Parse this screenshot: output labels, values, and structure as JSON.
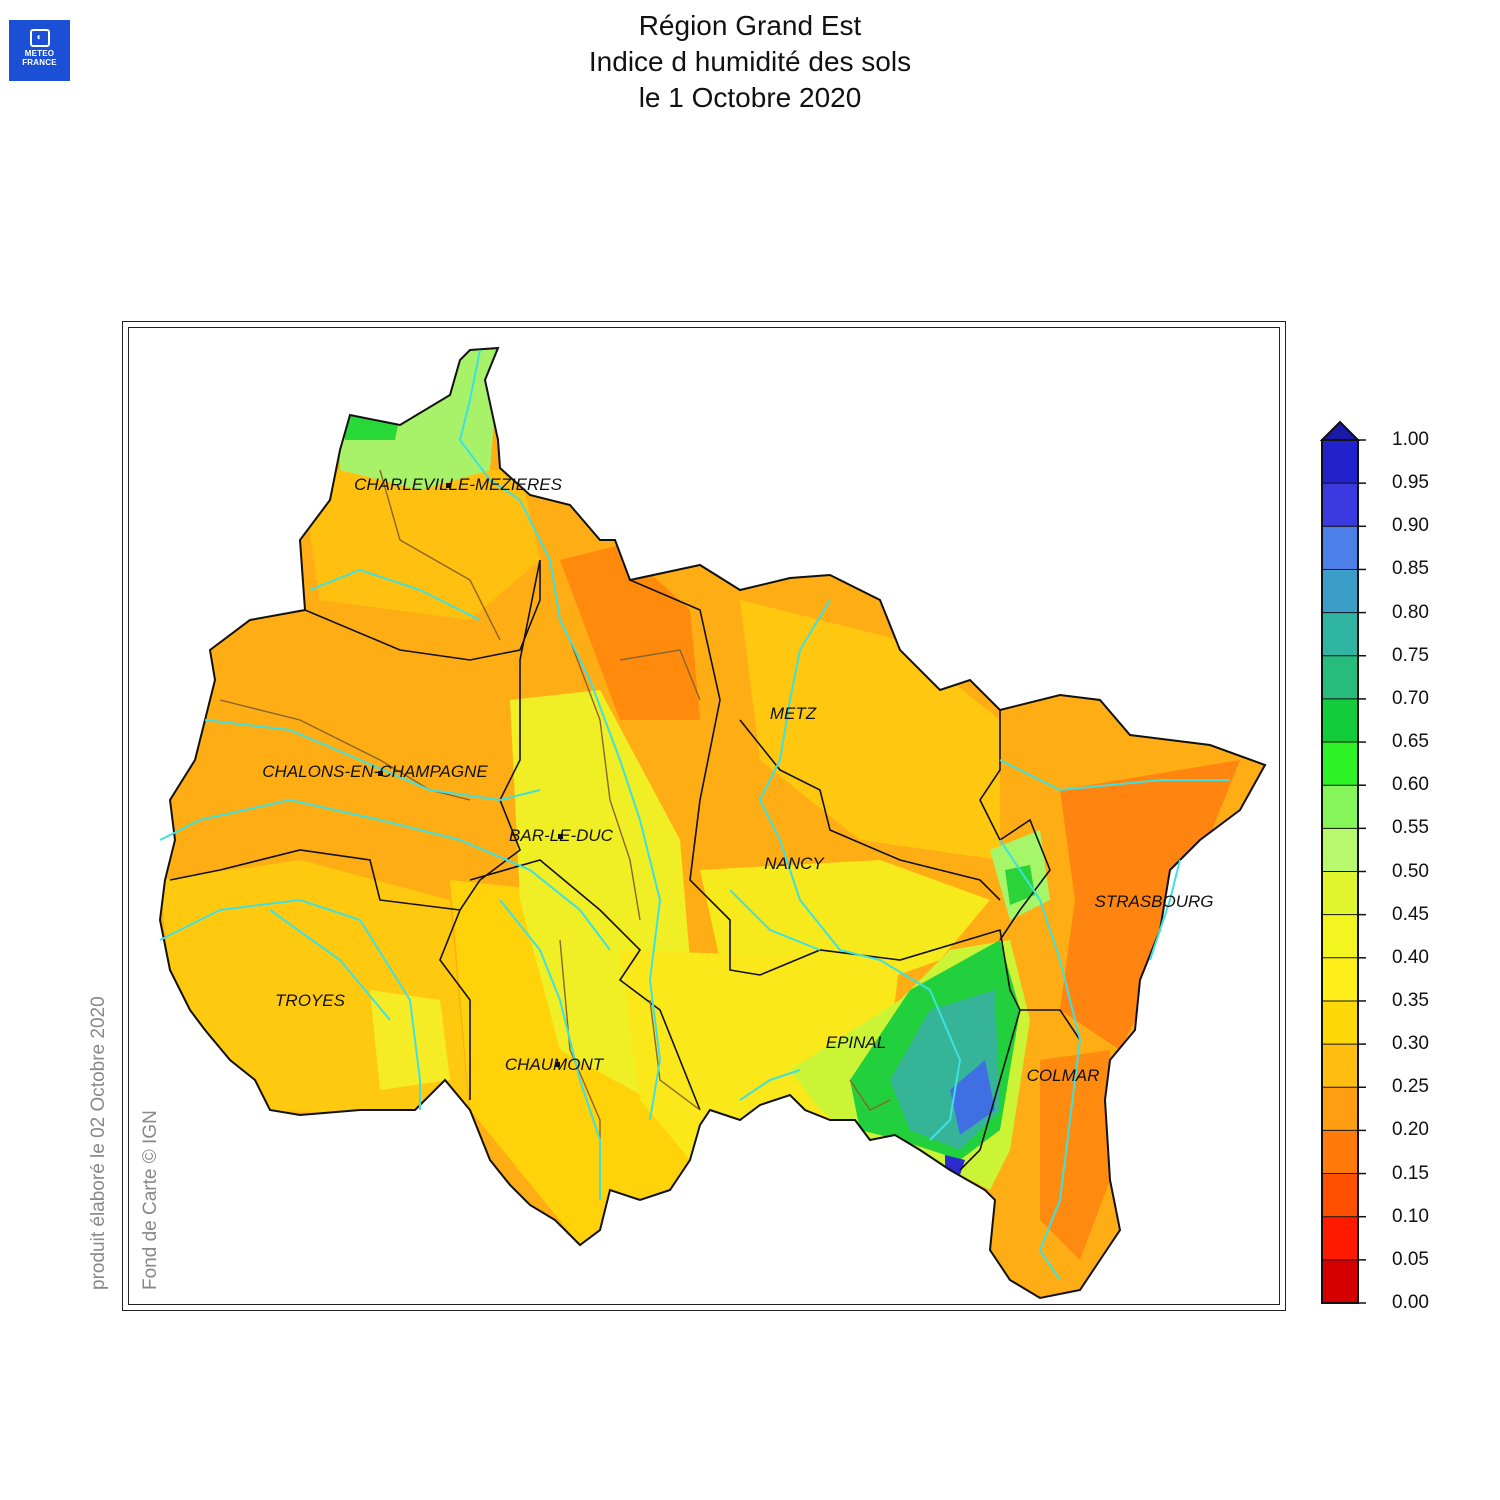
{
  "logo": {
    "line1": "METEO",
    "line2": "FRANCE"
  },
  "title": {
    "line1": "Région Grand Est",
    "line2": "Indice d humidité des sols",
    "line3": "le 1 Octobre 2020"
  },
  "credits": {
    "produced": "produit élaboré le 02 Octobre 2020",
    "basemap": "Fond de Carte © IGN"
  },
  "cities": [
    {
      "name": "CHARLEVILLE-MEZIERES"
    },
    {
      "name": "METZ"
    },
    {
      "name": "CHALONS-EN-CHAMPAGNE"
    },
    {
      "name": "BAR-LE-DUC"
    },
    {
      "name": "NANCY"
    },
    {
      "name": "STRASBOURG"
    },
    {
      "name": "TROYES"
    },
    {
      "name": "EPINAL"
    },
    {
      "name": "CHAUMONT"
    },
    {
      "name": "COLMAR"
    }
  ],
  "colorbar": {
    "labels": [
      "1.00",
      "0.95",
      "0.90",
      "0.85",
      "0.80",
      "0.75",
      "0.70",
      "0.65",
      "0.60",
      "0.55",
      "0.50",
      "0.45",
      "0.40",
      "0.35",
      "0.30",
      "0.25",
      "0.20",
      "0.15",
      "0.10",
      "0.05",
      "0.00"
    ],
    "colors_low_to_high": [
      "#d40000",
      "#ff1a00",
      "#ff5000",
      "#ff7a0a",
      "#ff9e10",
      "#ffbe10",
      "#ffd80a",
      "#ffee1a",
      "#f2f51f",
      "#e0f52e",
      "#b9f86c",
      "#86f55a",
      "#2df226",
      "#12cc3a",
      "#25bd79",
      "#2fb5a2",
      "#3a9ec9",
      "#4d7fe8",
      "#3a3ae0",
      "#2222cc"
    ],
    "over_color": "#1a1aa8"
  },
  "map_colors": {
    "dry_orange": "#ff9e10",
    "orange": "#ffb414",
    "yellow_orange": "#ffd20a",
    "yellow": "#f4f024",
    "light_green": "#a6f76a",
    "green": "#1ad43a",
    "teal": "#32b596",
    "blue": "#3d66e0",
    "deep_orange": "#ff7a0a",
    "river": "#3fe0e0",
    "border": "#111111",
    "dept_border": "#8a6428"
  }
}
